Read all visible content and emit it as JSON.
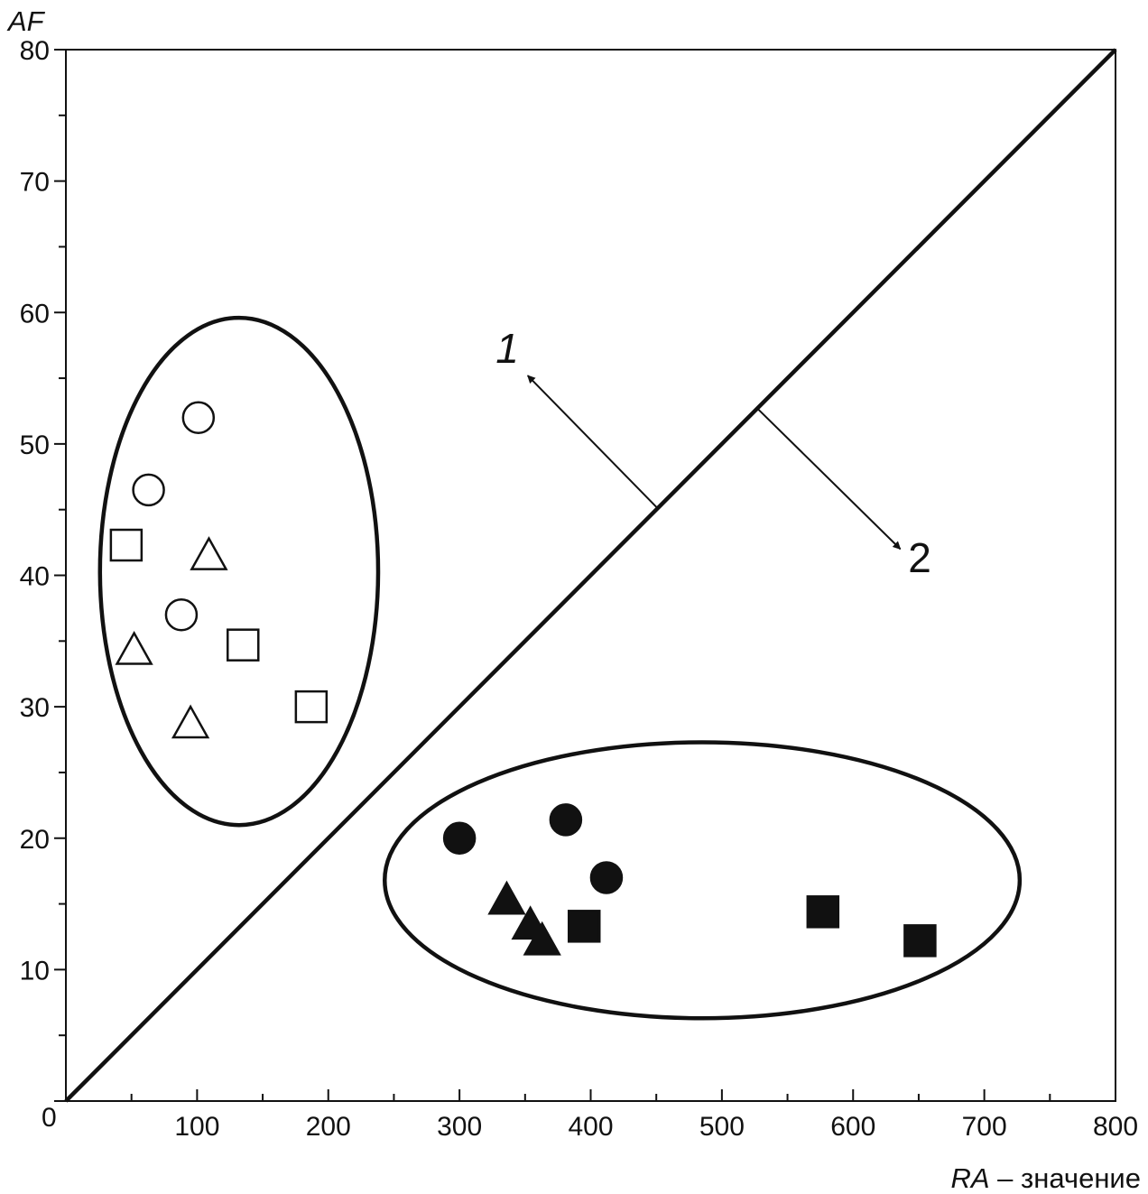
{
  "chart_data": {
    "type": "scatter",
    "xlabel_italic": "RA",
    "xlabel_rest": " – значение",
    "ylabel": "AF",
    "xlim": [
      0,
      800
    ],
    "ylim": [
      0,
      80
    ],
    "x_ticks": [
      0,
      100,
      200,
      300,
      400,
      500,
      600,
      700,
      800
    ],
    "x_tick_labels": [
      "",
      "100",
      "200",
      "300",
      "400",
      "500",
      "600",
      "700",
      "800"
    ],
    "y_ticks": [
      0,
      10,
      20,
      30,
      40,
      50,
      60,
      70,
      80
    ],
    "y_tick_labels": [
      "",
      "10",
      "20",
      "30",
      "40",
      "50",
      "60",
      "70",
      "80"
    ],
    "origin_label": "0",
    "grid": false,
    "series": [
      {
        "marker": "circle",
        "filled": false,
        "points": [
          [
            101,
            52
          ],
          [
            63,
            46.5
          ],
          [
            88,
            37
          ]
        ]
      },
      {
        "marker": "square",
        "filled": false,
        "points": [
          [
            46,
            42.3
          ],
          [
            135,
            34.7
          ],
          [
            187,
            30
          ]
        ]
      },
      {
        "marker": "triangle",
        "filled": false,
        "points": [
          [
            109,
            41.5
          ],
          [
            52,
            34.3
          ],
          [
            95,
            28.7
          ]
        ]
      },
      {
        "marker": "circle",
        "filled": true,
        "points": [
          [
            300,
            20
          ],
          [
            381,
            21.4
          ],
          [
            412,
            17
          ]
        ]
      },
      {
        "marker": "triangle",
        "filled": true,
        "points": [
          [
            336,
            15.3
          ],
          [
            354,
            13.4
          ],
          [
            363,
            12.2
          ]
        ]
      },
      {
        "marker": "square",
        "filled": true,
        "points": [
          [
            395,
            13.3
          ],
          [
            577,
            14.4
          ],
          [
            651,
            12.2
          ]
        ]
      }
    ],
    "line": {
      "points": [
        [
          0,
          0
        ],
        [
          800,
          80
        ]
      ]
    },
    "ellipses": [
      {
        "center": [
          132,
          40.3
        ],
        "rx": 106,
        "ry": 19.3
      },
      {
        "center": [
          485,
          16.8
        ],
        "rx": 242,
        "ry": 10.5
      }
    ],
    "annotations": [
      {
        "text": "1",
        "italic": true,
        "side": "above line"
      },
      {
        "text": "2",
        "italic": false,
        "side": "below line"
      }
    ],
    "arrows": [
      {
        "from": [
          451,
          45.1
        ],
        "to": [
          352,
          55.2
        ],
        "label": "1"
      },
      {
        "from": [
          527,
          52.7
        ],
        "to": [
          636,
          42.0
        ],
        "label": "2"
      }
    ]
  }
}
